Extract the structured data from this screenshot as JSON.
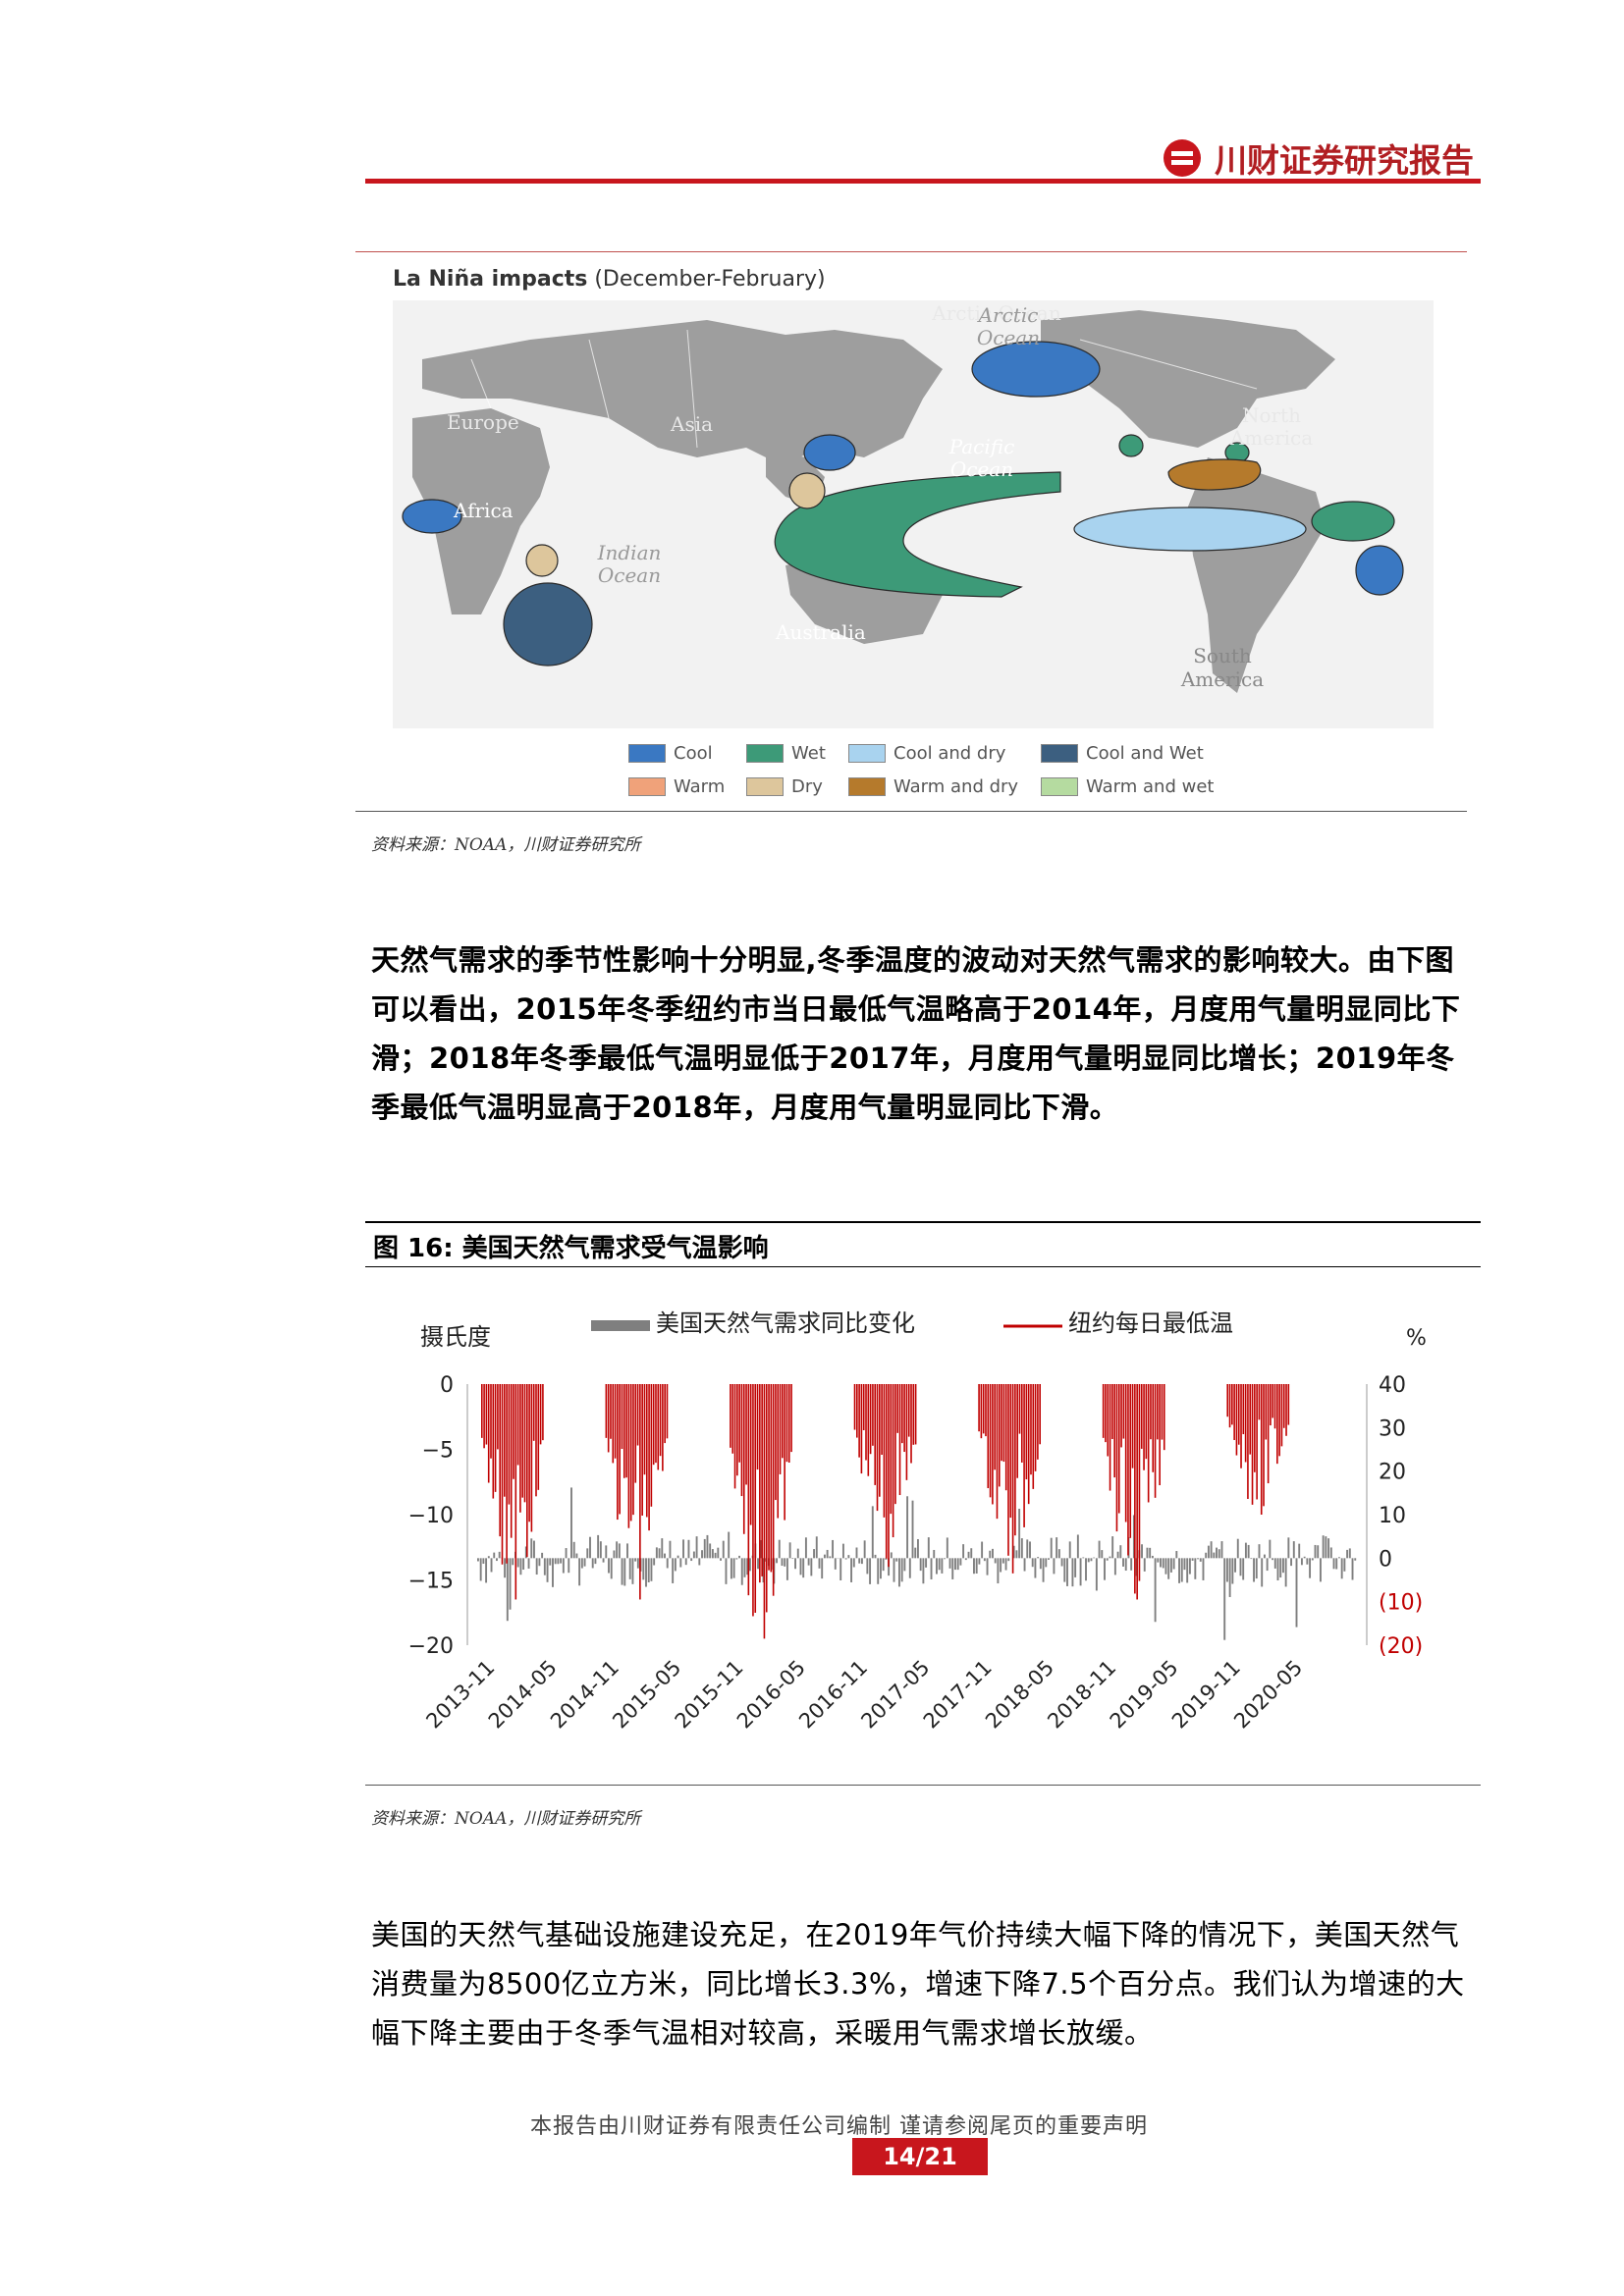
{
  "header": {
    "brand": "川财证券研究报告"
  },
  "map": {
    "title_bold": "La Niña impacts",
    "title_rest": " (December-February)",
    "labels": {
      "arctic": "Arctic\nOcean",
      "europe": "Europe",
      "asia": "Asia",
      "north_america": "North\nAmerica",
      "pacific": "Pacific\nOcean",
      "africa": "Africa",
      "indian": "Indian\nOcean",
      "australia": "Australia",
      "south_america": "South\nAmerica"
    },
    "legend": [
      {
        "label": "Cool",
        "color": "#3a78c2"
      },
      {
        "label": "Wet",
        "color": "#3d9a78"
      },
      {
        "label": "Cool and dry",
        "color": "#a9d3ef"
      },
      {
        "label": "Cool and Wet",
        "color": "#3c5f80"
      },
      {
        "label": "Warm",
        "color": "#f0a27a"
      },
      {
        "label": "Dry",
        "color": "#ddc69c"
      },
      {
        "label": "Warm and dry",
        "color": "#b57a2c"
      },
      {
        "label": "Warm and wet",
        "color": "#b5dba0"
      }
    ],
    "source": "资料来源：NOAA，川财证券研究所"
  },
  "para1": "天然气需求的季节性影响十分明显,冬季温度的波动对天然气需求的影响较大。由下图可以看出，2015年冬季纽约市当日最低气温略高于2014年，月度用气量明显同比下滑；2018年冬季最低气温明显低于2017年，月度用气量明显同比增长；2019年冬季最低气温明显高于2018年，月度用气量明显同比下滑。",
  "figure": {
    "title": "图 16:  美国天然气需求受气温影响",
    "source": "资料来源：NOAA，川财证券研究所"
  },
  "chart_data": {
    "type": "bar",
    "left_axis_label": "摄氏度",
    "right_axis_label": "%",
    "left_ticks": [
      "0",
      "−5",
      "−10",
      "−15",
      "−20"
    ],
    "left_range": [
      -20,
      0
    ],
    "right_ticks": [
      "40",
      "30",
      "20",
      "10",
      "0",
      "(10)",
      "(20)"
    ],
    "right_range": [
      -20,
      40
    ],
    "x_ticks": [
      "2013-11",
      "2014-05",
      "2014-11",
      "2015-05",
      "2015-11",
      "2016-05",
      "2016-11",
      "2017-05",
      "2017-11",
      "2018-05",
      "2018-11",
      "2019-05",
      "2019-11",
      "2020-05"
    ],
    "series": [
      {
        "name": "美国天然气需求同比变化",
        "color": "#7f7f7f",
        "axis": "right"
      },
      {
        "name": "纽约每日最低温",
        "color": "#c00000",
        "axis": "left"
      }
    ],
    "winter_min_temp_peaks": [
      {
        "period": "2013-11/2014-04",
        "min": -16.5
      },
      {
        "period": "2014-11/2015-04",
        "min": -16.5
      },
      {
        "period": "2015-11/2016-04",
        "min": -19.5
      },
      {
        "period": "2016-11/2017-04",
        "min": -14.0
      },
      {
        "period": "2017-11/2018-04",
        "min": -14.5
      },
      {
        "period": "2018-11/2019-04",
        "min": -16.5
      },
      {
        "period": "2019-11/2020-04",
        "min": -10.0
      }
    ]
  },
  "para2": "美国的天然气基础设施建设充足，在2019年气价持续大幅下降的情况下，美国天然气消费量为8500亿立方米，同比增长3.3%，增速下降7.5个百分点。我们认为增速的大幅下降主要由于冬季气温相对较高，采暖用气需求增长放缓。",
  "footer": {
    "note": "本报告由川财证券有限责任公司编制  谨请参阅尾页的重要声明",
    "page": "14/21"
  }
}
